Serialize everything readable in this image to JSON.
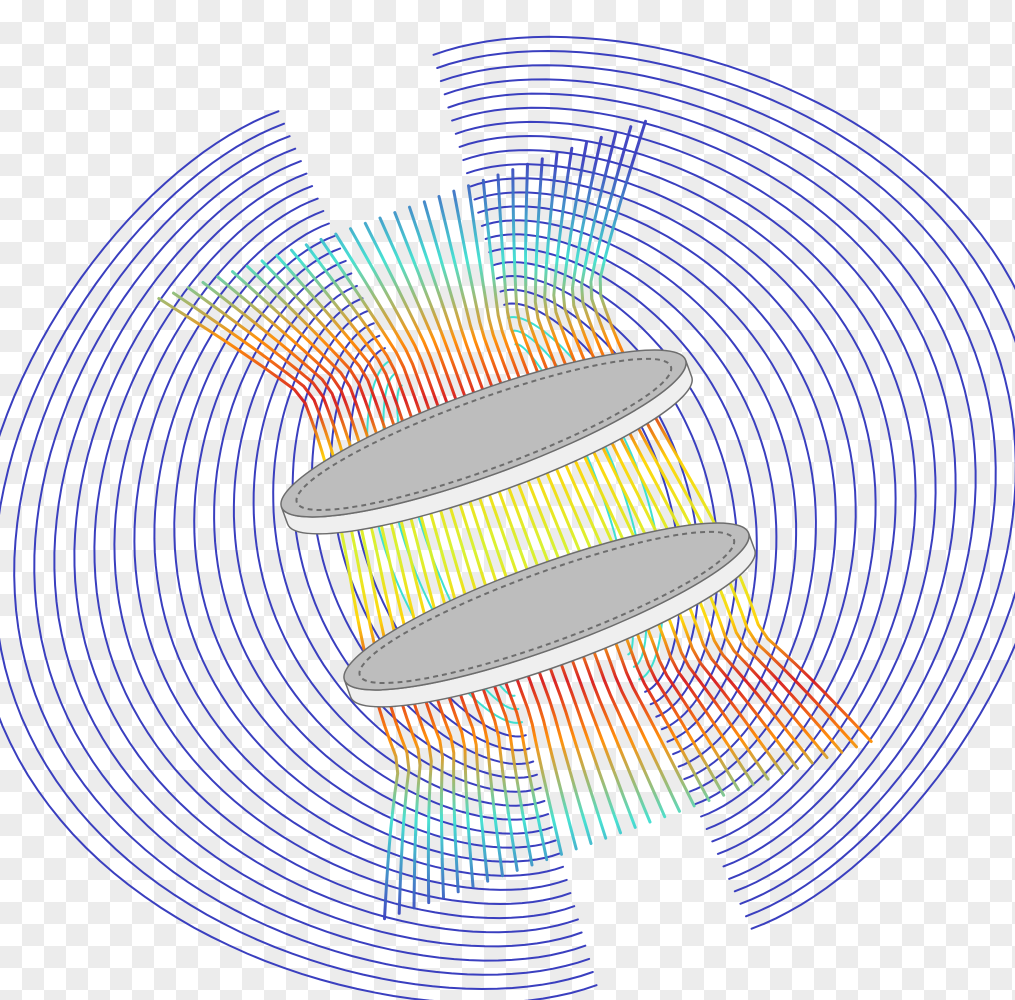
{
  "image": {
    "subject": "helmholtz-coil-magnetic-field-lines",
    "palette": {
      "field_strong": "#d7191c",
      "field_high": "#ff8c00",
      "field_mid_high": "#ffd400",
      "field_mid": "#d6f22a",
      "field_low": "#3fe0d0",
      "field_weak": "#3a3fbf",
      "coil_face": "#efefef",
      "coil_side": "#bdbdbd",
      "coil_edge": "#6d6d6d",
      "checker_light": "#ffffff",
      "checker_dark": "#ececec"
    },
    "coils": [
      {
        "name": "upper-coil"
      },
      {
        "name": "lower-coil"
      }
    ],
    "field_line_count": 46
  }
}
